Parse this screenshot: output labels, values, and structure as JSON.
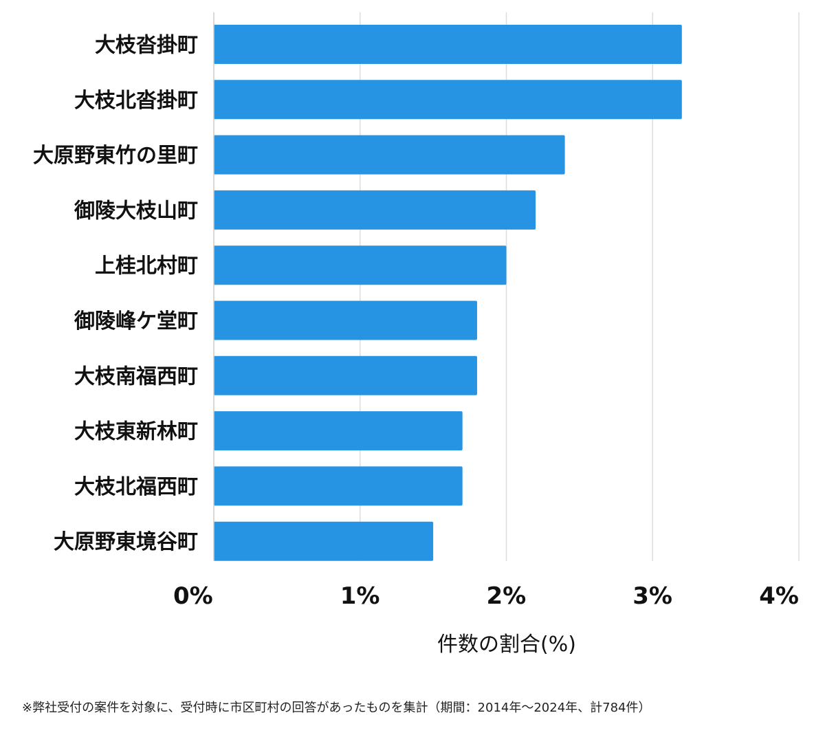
{
  "chart_data": {
    "type": "bar",
    "orientation": "horizontal",
    "categories": [
      "大枝沓掛町",
      "大枝北沓掛町",
      "大原野東竹の里町",
      "御陵大枝山町",
      "上桂北村町",
      "御陵峰ケ堂町",
      "大枝南福西町",
      "大枝東新林町",
      "大枝北福西町",
      "大原野東境谷町"
    ],
    "values": [
      3.2,
      3.2,
      2.4,
      2.2,
      2.0,
      1.8,
      1.8,
      1.7,
      1.7,
      1.5
    ],
    "xlim": [
      0,
      4
    ],
    "x_ticks": [
      0,
      1,
      2,
      3,
      4
    ],
    "x_tick_labels": [
      "0%",
      "1%",
      "2%",
      "3%",
      "4%"
    ],
    "xlabel": "件数の割合(%)",
    "bar_color": "#2793e3",
    "grid": true
  },
  "footnote": "※弊社受付の案件を対象に、受付時に市区町村の回答があったものを集計（期間：2014年～2024年、計784件）"
}
